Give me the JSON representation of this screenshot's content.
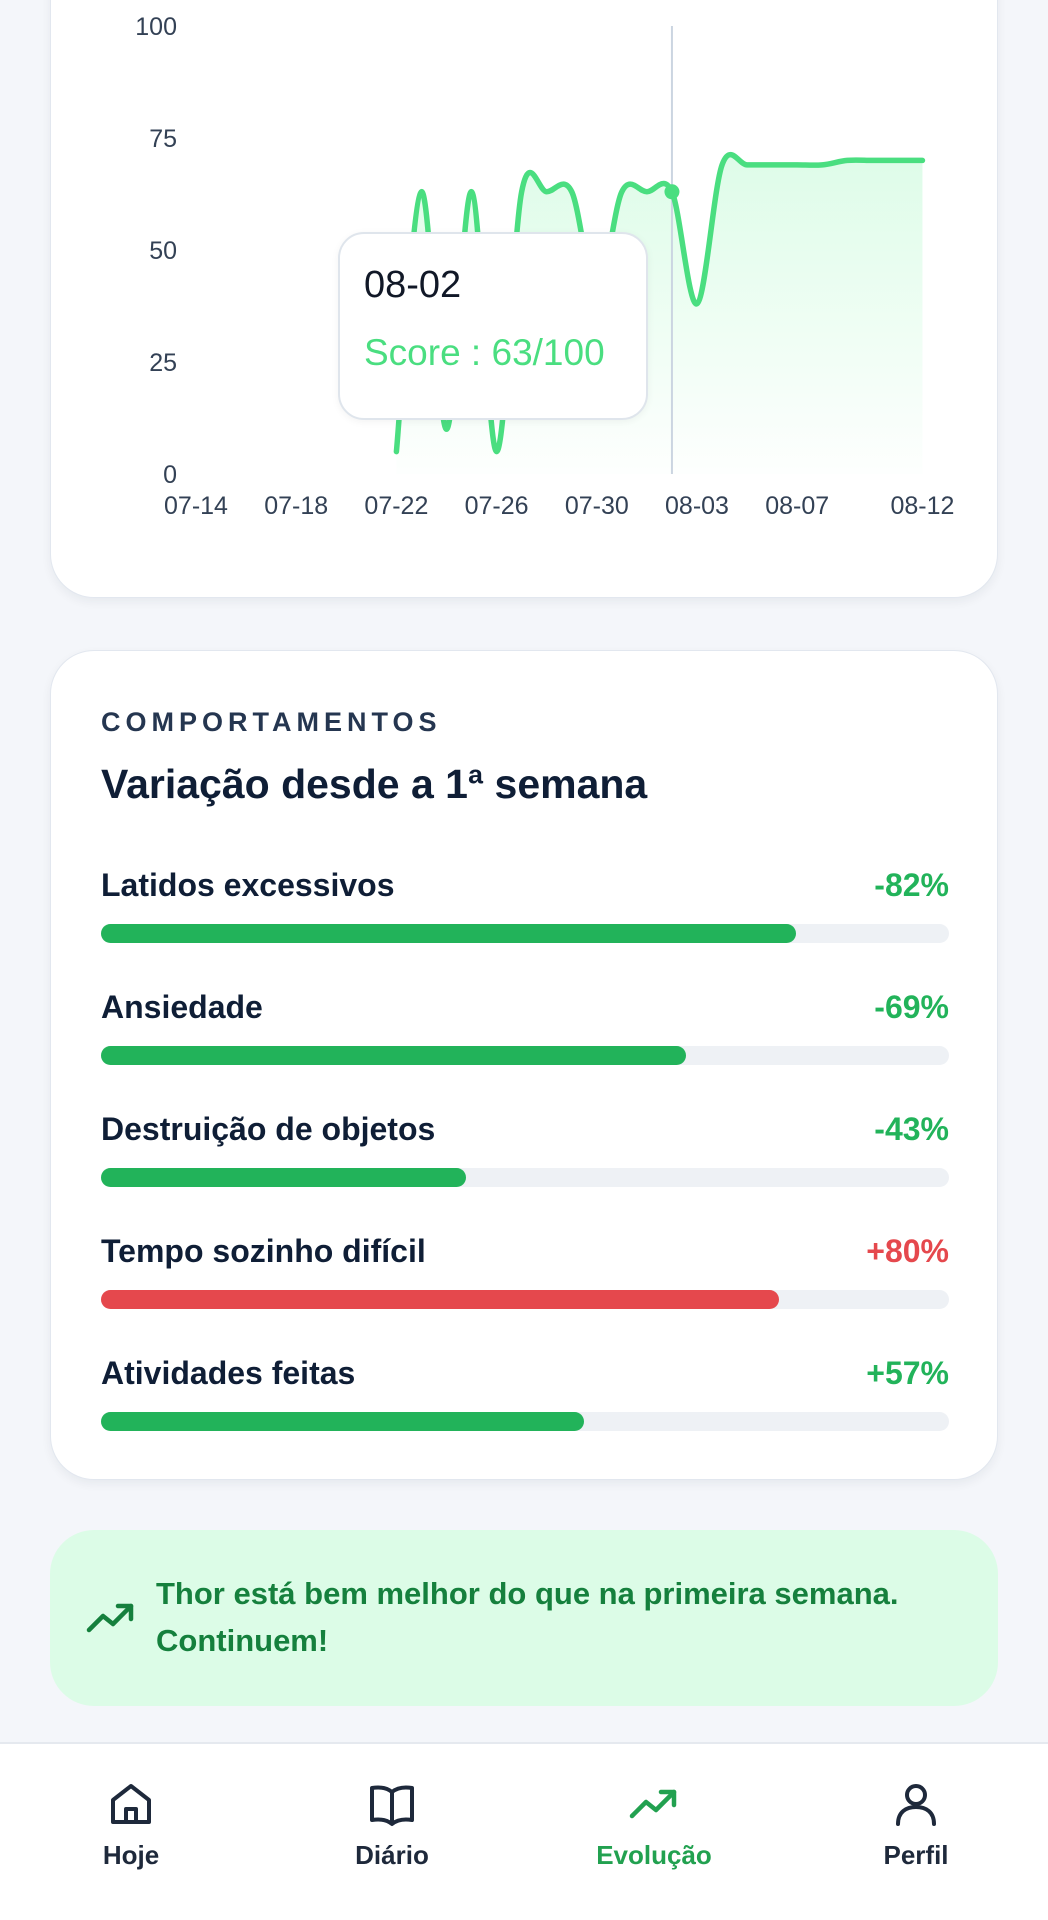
{
  "chart_data": {
    "type": "area",
    "x_tick_labels": [
      "07-14",
      "07-18",
      "07-22",
      "07-26",
      "07-30",
      "08-03",
      "08-07",
      "08-12"
    ],
    "y_ticks": [
      0,
      25,
      50,
      75,
      100
    ],
    "ylim": [
      0,
      100
    ],
    "x": [
      "07-22",
      "07-23",
      "07-24",
      "07-25",
      "07-26",
      "07-27",
      "07-28",
      "07-29",
      "07-30",
      "07-31",
      "08-01",
      "08-02",
      "08-03",
      "08-04",
      "08-05",
      "08-06",
      "08-07",
      "08-08",
      "08-09",
      "08-10",
      "08-11",
      "08-12"
    ],
    "values": [
      5,
      63,
      10,
      63,
      5,
      63,
      63,
      63,
      40,
      63,
      63,
      63,
      38,
      69,
      69,
      69,
      69,
      69,
      70,
      70,
      70,
      70
    ],
    "tooltip": {
      "date": "08-02",
      "score_text": "Score : 63/100"
    },
    "colors": {
      "line": "#4ade80",
      "fill": "#dcfce7",
      "cursor": "#cbd5e1"
    }
  },
  "behaviors": {
    "eyebrow": "COMPORTAMENTOS",
    "title": "Variação desde a 1ª semana",
    "items": [
      {
        "label": "Latidos excessivos",
        "value": "-82%",
        "fraction": 0.82,
        "color": "#22b35a"
      },
      {
        "label": "Ansiedade",
        "value": "-69%",
        "fraction": 0.69,
        "color": "#22b35a"
      },
      {
        "label": "Destruição de objetos",
        "value": "-43%",
        "fraction": 0.43,
        "color": "#22b35a"
      },
      {
        "label": "Tempo sozinho difícil",
        "value": "+80%",
        "fraction": 0.8,
        "color": "#e5484d"
      },
      {
        "label": "Atividades feitas",
        "value": "+57%",
        "fraction": 0.57,
        "color": "#22b35a"
      }
    ]
  },
  "banner": {
    "icon": "trending-up-icon",
    "text": "Thor está bem melhor do que na primeira semana. Continuem!"
  },
  "nav": {
    "items": [
      {
        "label": "Hoje",
        "icon": "home-icon",
        "active": false
      },
      {
        "label": "Diário",
        "icon": "book-icon",
        "active": false
      },
      {
        "label": "Evolução",
        "icon": "trending-up-icon",
        "active": true
      },
      {
        "label": "Perfil",
        "icon": "user-icon",
        "active": false
      }
    ],
    "active_color": "#22a150",
    "inactive_color": "#1e293b"
  }
}
